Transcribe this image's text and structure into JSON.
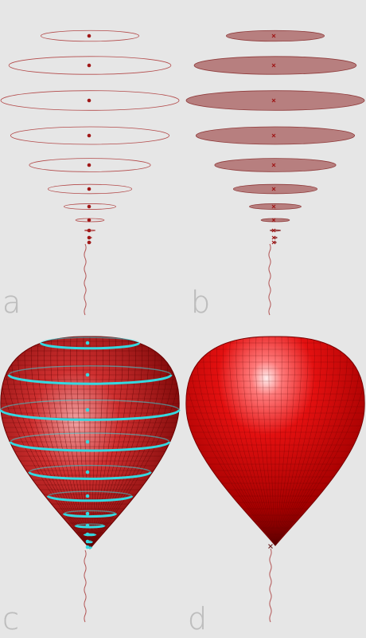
{
  "panels": [
    {
      "label": "a",
      "view": "outline-sections"
    },
    {
      "label": "b",
      "view": "filled-sections"
    },
    {
      "label": "c",
      "view": "wireframe-with-sections"
    },
    {
      "label": "d",
      "view": "solid-surface"
    }
  ],
  "sections": {
    "count": 11,
    "relative_widths": [
      0.55,
      0.91,
      1.0,
      0.89,
      0.68,
      0.47,
      0.29,
      0.16,
      0.06,
      0.02,
      0.01
    ],
    "relative_depth": 0.11
  },
  "colors": {
    "background": "#e6e6e6",
    "outline": "#b34a4a",
    "center_mark": "#a01818",
    "section_fill": "#b77f7f",
    "section_stroke": "#8f3a3a",
    "balloon_red": "#d21414",
    "balloon_dark": "#6a0000",
    "mesh_line": "#5a0000",
    "section_highlight": "#35d8e0",
    "string": "#b35555",
    "label": "#bdbdbd"
  }
}
